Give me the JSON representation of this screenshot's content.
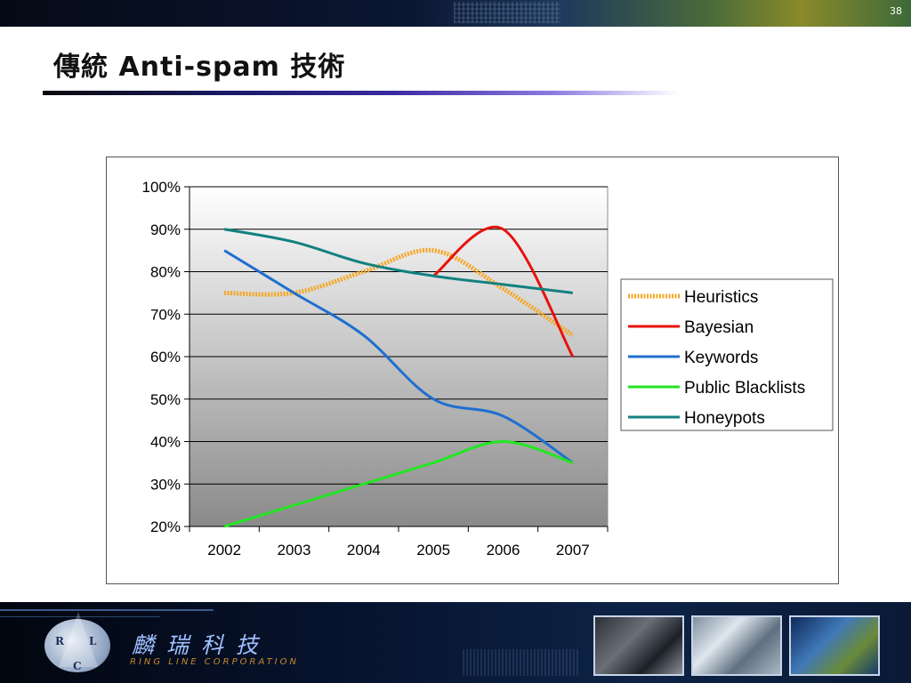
{
  "slide": {
    "page_number": "38",
    "title": "傳統 Anti-spam 技術"
  },
  "footer": {
    "company_cn": "麟瑞科技",
    "company_en": "RING LINE CORPORATION",
    "logo_letters": [
      "R",
      "L",
      "C"
    ]
  },
  "chart_data": {
    "type": "line",
    "categories": [
      "2002",
      "2003",
      "2004",
      "2005",
      "2006",
      "2007"
    ],
    "ylim": [
      0.2,
      1.0
    ],
    "yticks": [
      0.2,
      0.3,
      0.4,
      0.5,
      0.6,
      0.7,
      0.8,
      0.9,
      1.0
    ],
    "ytick_labels": [
      "20%",
      "30%",
      "40%",
      "50%",
      "60%",
      "70%",
      "80%",
      "90%",
      "100%"
    ],
    "grid": true,
    "legend_position": "right",
    "series": [
      {
        "name": "Heuristics",
        "color": "#f5a623",
        "style": "dotted-thick",
        "values": [
          0.75,
          0.75,
          0.8,
          0.85,
          0.76,
          0.65
        ]
      },
      {
        "name": "Bayesian",
        "color": "#e8120c",
        "style": "solid",
        "values": [
          null,
          null,
          null,
          0.79,
          0.9,
          0.6
        ]
      },
      {
        "name": "Keywords",
        "color": "#1f6fcf",
        "style": "solid",
        "values": [
          0.85,
          0.75,
          0.65,
          0.5,
          0.46,
          0.35
        ]
      },
      {
        "name": "Public Blacklists",
        "color": "#22e622",
        "style": "solid",
        "values": [
          0.2,
          0.25,
          0.3,
          0.35,
          0.4,
          0.35
        ]
      },
      {
        "name": "Honeypots",
        "color": "#138080",
        "style": "solid",
        "values": [
          0.9,
          0.87,
          0.82,
          0.79,
          0.77,
          0.75
        ]
      }
    ]
  }
}
